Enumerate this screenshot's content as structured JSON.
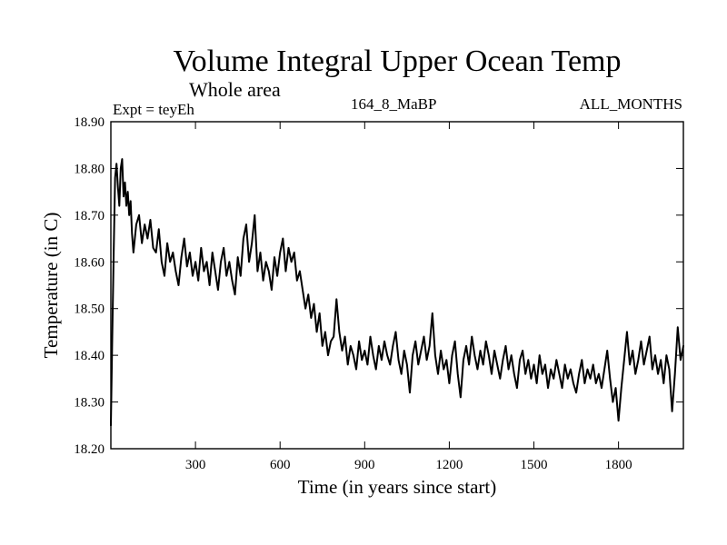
{
  "chart_data": {
    "type": "line",
    "title": "Volume Integral Upper Ocean Temp",
    "subtitle": "Whole area",
    "header_left": "Expt = teyEh",
    "header_center": "164_8_MaBP",
    "header_right": "ALL_MONTHS",
    "xlabel": "Time (in years since start)",
    "ylabel": "Temperature (in C)",
    "xlim": [
      0,
      2030
    ],
    "ylim": [
      18.2,
      18.9
    ],
    "xticks": [
      300,
      600,
      900,
      1200,
      1500,
      1800
    ],
    "xtick_labels": [
      "300",
      "600",
      "900",
      "1200",
      "1500",
      "1800"
    ],
    "yticks": [
      18.2,
      18.3,
      18.4,
      18.5,
      18.6,
      18.7,
      18.8,
      18.9
    ],
    "ytick_labels": [
      "18.20",
      "18.30",
      "18.40",
      "18.50",
      "18.60",
      "18.70",
      "18.80",
      "18.90"
    ],
    "grid": false,
    "series": [
      {
        "name": "Volume Integral Upper Ocean Temp",
        "color": "#000000",
        "x": [
          0,
          5,
          10,
          15,
          20,
          25,
          30,
          35,
          40,
          45,
          50,
          55,
          60,
          65,
          70,
          75,
          80,
          90,
          100,
          110,
          120,
          130,
          140,
          150,
          160,
          170,
          180,
          190,
          200,
          210,
          220,
          230,
          240,
          250,
          260,
          270,
          280,
          290,
          300,
          310,
          320,
          330,
          340,
          350,
          360,
          370,
          380,
          390,
          400,
          410,
          420,
          430,
          440,
          450,
          460,
          470,
          480,
          490,
          500,
          510,
          520,
          530,
          540,
          550,
          560,
          570,
          580,
          590,
          600,
          610,
          620,
          630,
          640,
          650,
          660,
          670,
          680,
          690,
          700,
          710,
          720,
          730,
          740,
          750,
          760,
          770,
          780,
          790,
          800,
          810,
          820,
          830,
          840,
          850,
          860,
          870,
          880,
          890,
          900,
          910,
          920,
          930,
          940,
          950,
          960,
          970,
          980,
          990,
          1000,
          1010,
          1020,
          1030,
          1040,
          1050,
          1060,
          1070,
          1080,
          1090,
          1100,
          1110,
          1120,
          1130,
          1140,
          1150,
          1160,
          1170,
          1180,
          1190,
          1200,
          1210,
          1220,
          1230,
          1240,
          1250,
          1260,
          1270,
          1280,
          1290,
          1300,
          1310,
          1320,
          1330,
          1340,
          1350,
          1360,
          1370,
          1380,
          1390,
          1400,
          1410,
          1420,
          1430,
          1440,
          1450,
          1460,
          1470,
          1480,
          1490,
          1500,
          1510,
          1520,
          1530,
          1540,
          1550,
          1560,
          1570,
          1580,
          1590,
          1600,
          1610,
          1620,
          1630,
          1640,
          1650,
          1660,
          1670,
          1680,
          1690,
          1700,
          1710,
          1720,
          1730,
          1740,
          1750,
          1760,
          1770,
          1780,
          1790,
          1800,
          1810,
          1820,
          1830,
          1840,
          1850,
          1860,
          1870,
          1880,
          1890,
          1900,
          1910,
          1920,
          1930,
          1940,
          1950,
          1960,
          1970,
          1980,
          1990,
          2000,
          2010,
          2020,
          2030
        ],
        "values": [
          18.25,
          18.44,
          18.62,
          18.78,
          18.81,
          18.76,
          18.72,
          18.8,
          18.82,
          18.74,
          18.77,
          18.72,
          18.75,
          18.7,
          18.73,
          18.66,
          18.62,
          18.68,
          18.7,
          18.64,
          18.68,
          18.65,
          18.69,
          18.63,
          18.62,
          18.67,
          18.6,
          18.57,
          18.64,
          18.6,
          18.62,
          18.58,
          18.55,
          18.61,
          18.65,
          18.59,
          18.62,
          18.57,
          18.6,
          18.56,
          18.63,
          18.58,
          18.6,
          18.55,
          18.62,
          18.58,
          18.54,
          18.6,
          18.63,
          18.57,
          18.6,
          18.56,
          18.53,
          18.61,
          18.57,
          18.65,
          18.68,
          18.6,
          18.64,
          18.7,
          18.58,
          18.62,
          18.56,
          18.6,
          18.58,
          18.54,
          18.61,
          18.57,
          18.62,
          18.65,
          18.58,
          18.63,
          18.6,
          18.62,
          18.56,
          18.58,
          18.54,
          18.5,
          18.53,
          18.48,
          18.51,
          18.45,
          18.49,
          18.42,
          18.45,
          18.4,
          18.43,
          18.44,
          18.52,
          18.45,
          18.41,
          18.44,
          18.38,
          18.42,
          18.4,
          18.37,
          18.43,
          18.39,
          18.41,
          18.38,
          18.44,
          18.4,
          18.37,
          18.42,
          18.39,
          18.43,
          18.4,
          18.38,
          18.42,
          18.45,
          18.39,
          18.36,
          18.41,
          18.38,
          18.32,
          18.4,
          18.43,
          18.38,
          18.41,
          18.44,
          18.39,
          18.42,
          18.49,
          18.4,
          18.36,
          18.41,
          18.37,
          18.39,
          18.34,
          18.4,
          18.43,
          18.36,
          18.31,
          18.39,
          18.42,
          18.38,
          18.44,
          18.4,
          18.37,
          18.41,
          18.38,
          18.43,
          18.4,
          18.36,
          18.41,
          18.38,
          18.35,
          18.39,
          18.42,
          18.37,
          18.4,
          18.36,
          18.33,
          18.39,
          18.41,
          18.36,
          18.39,
          18.35,
          18.38,
          18.34,
          18.4,
          18.36,
          18.38,
          18.33,
          18.37,
          18.35,
          18.39,
          18.36,
          18.33,
          18.38,
          18.35,
          18.37,
          18.34,
          18.32,
          18.36,
          18.39,
          18.34,
          18.37,
          18.35,
          18.38,
          18.34,
          18.36,
          18.33,
          18.37,
          18.41,
          18.35,
          18.3,
          18.33,
          18.26,
          18.33,
          18.39,
          18.45,
          18.38,
          18.41,
          18.36,
          18.39,
          18.43,
          18.38,
          18.41,
          18.44,
          18.37,
          18.4,
          18.36,
          18.39,
          18.34,
          18.4,
          18.37,
          18.28,
          18.36,
          18.46,
          18.39,
          18.42
        ]
      }
    ]
  }
}
